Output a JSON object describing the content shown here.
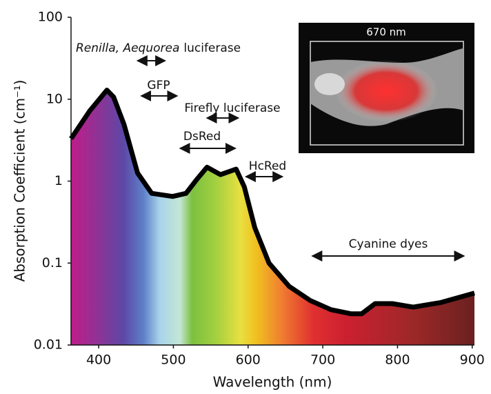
{
  "chart_data": {
    "type": "area",
    "x_label": "Wavelength  (nm)",
    "y_label": "Absorption Coefficient  (cm⁻¹)",
    "x": [
      363,
      388,
      411,
      420,
      434,
      452,
      471,
      499,
      517,
      531,
      545,
      563,
      584,
      595,
      609,
      628,
      655,
      683,
      711,
      738,
      752,
      770,
      793,
      821,
      858,
      903
    ],
    "values": [
      3.3,
      7.2,
      12.9,
      10.6,
      4.9,
      1.26,
      0.71,
      0.65,
      0.71,
      1.04,
      1.48,
      1.2,
      1.4,
      0.85,
      0.27,
      0.1,
      0.052,
      0.035,
      0.027,
      0.024,
      0.024,
      0.032,
      0.032,
      0.029,
      0.033,
      0.043
    ],
    "color": "#000000",
    "xlim": [
      363,
      903
    ],
    "xticks": [
      400,
      500,
      600,
      700,
      800,
      900
    ],
    "ylim": [
      0.01,
      100
    ],
    "yticks": [
      0.01,
      0.1,
      1,
      10,
      100
    ],
    "log_y": true,
    "annotations": [
      {
        "label": [
          "Renilla, Aequorea",
          "luciferase"
        ],
        "range": [
          452,
          489
        ]
      },
      {
        "label": "GFP",
        "range": [
          457,
          505
        ]
      },
      {
        "label": "Firefly luciferase",
        "range": [
          545,
          587
        ]
      },
      {
        "label": "DsRed",
        "range": [
          509,
          583
        ]
      },
      {
        "label": "HcRed",
        "range": [
          597,
          646
        ]
      },
      {
        "label": "Cyanine dyes",
        "range": [
          686,
          889
        ]
      }
    ],
    "inset_label": "670 nm"
  }
}
